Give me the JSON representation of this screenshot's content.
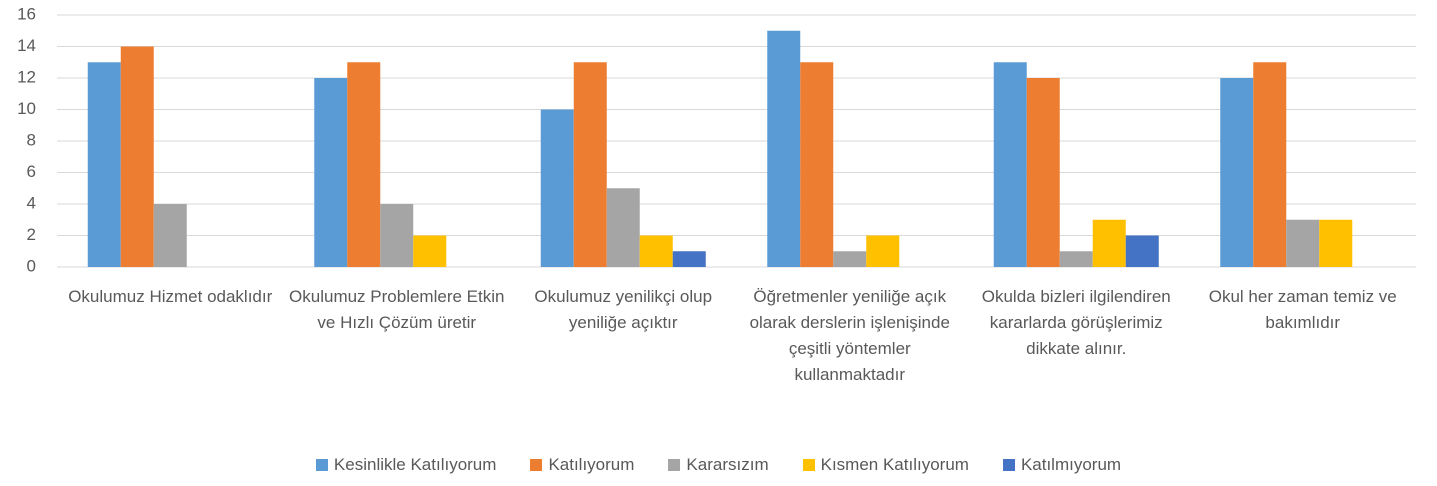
{
  "chart_data": {
    "type": "bar",
    "categories": [
      "Okulumuz Hizmet odaklıdır",
      "Okulumuz Problemlere Etkin ve Hızlı Çözüm üretir",
      "Okulumuz yenilikçi olup yeniliğe açıktır",
      "Öğretmenler yeniliğe açık olarak derslerin işlenişinde çeşitli yöntemler kullanmaktadır",
      "Okulda bizleri ilgilendiren kararlarda görüşlerimiz dikkate alınır.",
      "Okul her zaman temiz ve bakımlıdır"
    ],
    "series": [
      {
        "name": "Kesinlikle Katılıyorum",
        "color": "#5b9bd5",
        "values": [
          13,
          12,
          10,
          15,
          13,
          12
        ]
      },
      {
        "name": "Katılıyorum",
        "color": "#ed7d31",
        "values": [
          14,
          13,
          13,
          13,
          12,
          13
        ]
      },
      {
        "name": "Kararsızım",
        "color": "#a5a5a5",
        "values": [
          4,
          4,
          5,
          1,
          1,
          3
        ]
      },
      {
        "name": "Kısmen Katılıyorum",
        "color": "#ffc000",
        "values": [
          0,
          2,
          2,
          2,
          3,
          3
        ]
      },
      {
        "name": "Katılmıyorum",
        "color": "#4472c4",
        "values": [
          0,
          0,
          1,
          0,
          2,
          0
        ]
      }
    ],
    "ylim": [
      0,
      16
    ],
    "yticks": [
      0,
      2,
      4,
      6,
      8,
      10,
      12,
      14,
      16
    ],
    "grid": true,
    "legend": "bottom"
  }
}
